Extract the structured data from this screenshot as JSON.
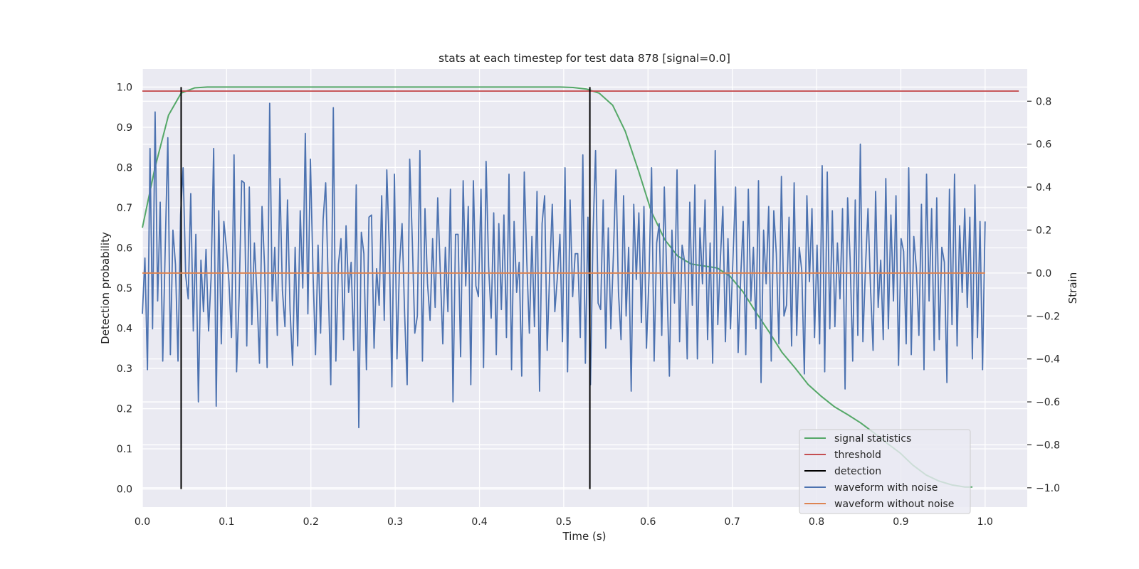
{
  "chart_data": {
    "type": "line",
    "title": "stats at each timestep for test data 878 [signal=0.0]",
    "xlabel": "Time (s)",
    "ylabel": "Detection probability",
    "y2label": "Strain",
    "xlim": [
      0.0,
      1.05
    ],
    "ylim": [
      -0.045,
      1.045
    ],
    "y2lim": [
      -1.09,
      0.95
    ],
    "x_ticks": [
      "0.0",
      "0.1",
      "0.2",
      "0.3",
      "0.4",
      "0.5",
      "0.6",
      "0.7",
      "0.8",
      "0.9",
      "1.0"
    ],
    "y_ticks": [
      "0.0",
      "0.1",
      "0.2",
      "0.3",
      "0.4",
      "0.5",
      "0.6",
      "0.7",
      "0.8",
      "0.9",
      "1.0"
    ],
    "y2_ticks": [
      "−1.0",
      "−0.8",
      "−0.6",
      "−0.4",
      "−0.2",
      "0.0",
      "0.2",
      "0.4",
      "0.6",
      "0.8"
    ],
    "grid": true,
    "legend_position": "lower right",
    "series": [
      {
        "name": "signal statistics",
        "axis": "left",
        "color": "#55a868",
        "x": [
          0.0,
          0.015,
          0.031,
          0.046,
          0.062,
          0.077,
          0.093,
          0.108,
          0.124,
          0.139,
          0.155,
          0.17,
          0.186,
          0.201,
          0.217,
          0.232,
          0.248,
          0.263,
          0.279,
          0.294,
          0.31,
          0.325,
          0.341,
          0.356,
          0.372,
          0.387,
          0.403,
          0.418,
          0.434,
          0.449,
          0.465,
          0.48,
          0.496,
          0.511,
          0.527,
          0.542,
          0.558,
          0.573,
          0.589,
          0.604,
          0.62,
          0.635,
          0.651,
          0.666,
          0.682,
          0.697,
          0.713,
          0.728,
          0.744,
          0.759,
          0.775,
          0.79,
          0.806,
          0.821,
          0.837,
          0.852,
          0.868,
          0.883,
          0.899,
          0.914,
          0.93,
          0.945,
          0.961,
          0.976,
          0.985
        ],
        "y": [
          0.65,
          0.8,
          0.93,
          0.985,
          0.998,
          1.0,
          1.0,
          1.0,
          1.0,
          1.0,
          1.0,
          1.0,
          1.0,
          1.0,
          1.0,
          1.0,
          1.0,
          1.0,
          1.0,
          1.0,
          1.0,
          1.0,
          1.0,
          1.0,
          1.0,
          1.0,
          1.0,
          1.0,
          1.0,
          1.0,
          1.0,
          1.0,
          1.0,
          0.999,
          0.995,
          0.985,
          0.955,
          0.89,
          0.79,
          0.69,
          0.62,
          0.58,
          0.56,
          0.555,
          0.55,
          0.53,
          0.49,
          0.44,
          0.39,
          0.34,
          0.3,
          0.26,
          0.23,
          0.205,
          0.185,
          0.165,
          0.14,
          0.115,
          0.09,
          0.06,
          0.035,
          0.02,
          0.01,
          0.005,
          0.005
        ]
      },
      {
        "name": "threshold",
        "axis": "left",
        "color": "#c44e52",
        "x": [
          0.0,
          1.04
        ],
        "y": [
          0.99,
          0.99
        ]
      },
      {
        "name": "detection",
        "axis": "left",
        "color": "#000000",
        "events": [
          {
            "x": 0.046,
            "y0": 0.0,
            "y1": 1.0
          },
          {
            "x": 0.531,
            "y0": 0.0,
            "y1": 1.0
          }
        ]
      },
      {
        "name": "waveform with noise",
        "axis": "right",
        "color": "#4c72b0",
        "x_range": [
          0.0,
          1.0
        ],
        "y": [
          -0.19,
          0.07,
          -0.45,
          0.58,
          -0.26,
          0.75,
          -0.13,
          0.33,
          -0.41,
          0.13,
          0.63,
          -0.38,
          0.2,
          0.04,
          -0.41,
          0.27,
          0.49,
          -0.01,
          -0.12,
          0.37,
          -0.27,
          0.18,
          -0.6,
          0.06,
          -0.18,
          0.11,
          -0.27,
          -0.02,
          0.58,
          -0.62,
          0.29,
          -0.33,
          0.24,
          0.12,
          -0.04,
          -0.3,
          0.55,
          -0.46,
          -0.11,
          0.43,
          0.42,
          -0.34,
          0.4,
          -0.24,
          0.14,
          -0.1,
          -0.42,
          0.31,
          0.03,
          -0.44,
          0.79,
          -0.13,
          0.12,
          -0.29,
          0.44,
          -0.08,
          -0.25,
          0.34,
          -0.17,
          -0.43,
          0.12,
          -0.34,
          0.29,
          -0.07,
          0.65,
          -0.19,
          0.53,
          0.01,
          -0.38,
          0.13,
          -0.28,
          0.25,
          0.42,
          -0.05,
          -0.52,
          0.77,
          -0.41,
          0.04,
          0.16,
          -0.31,
          0.22,
          -0.09,
          0.05,
          -0.36,
          0.41,
          -0.72,
          0.19,
          0.09,
          -0.45,
          0.26,
          0.27,
          -0.35,
          0.02,
          -0.15,
          0.36,
          -0.22,
          0.48,
          0.11,
          -0.53,
          0.46,
          -0.4,
          0.04,
          0.23,
          -0.19,
          -0.52,
          0.53,
          0.16,
          -0.28,
          -0.2,
          0.57,
          -0.41,
          0.3,
          -0.05,
          -0.22,
          0.16,
          -0.16,
          0.35,
          0.01,
          -0.33,
          0.12,
          -0.18,
          0.39,
          -0.6,
          0.18,
          0.18,
          -0.39,
          0.43,
          -0.06,
          0.31,
          -0.52,
          0.43,
          -0.06,
          -0.11,
          0.39,
          -0.44,
          0.52,
          0.03,
          -0.21,
          0.28,
          -0.38,
          0.23,
          -0.17,
          0.27,
          -0.3,
          0.46,
          -0.45,
          0.24,
          -0.09,
          0.05,
          -0.48,
          0.47,
          0.05,
          -0.28,
          0.17,
          -0.25,
          0.38,
          -0.55,
          0.23,
          0.36,
          -0.36,
          0.01,
          0.32,
          -0.18,
          -0.02,
          0.18,
          -0.32,
          0.49,
          -0.46,
          0.34,
          -0.11,
          0.09,
          0.09,
          -0.3,
          0.55,
          -0.42,
          0.26,
          -0.52,
          0.18,
          0.57,
          -0.14,
          -0.17,
          0.34,
          -0.35,
          0.21,
          -0.26,
          0.08,
          0.48,
          -0.09,
          -0.31,
          0.36,
          -0.2,
          0.12,
          -0.55,
          0.32,
          -0.03,
          0.28,
          -0.23,
          0.31,
          -0.35,
          -0.01,
          0.49,
          -0.41,
          0.14,
          0.23,
          -0.29,
          0.4,
          -0.03,
          -0.48,
          0.2,
          -0.14,
          0.48,
          -0.32,
          0.13,
          0.05,
          -0.4,
          0.33,
          -0.15,
          0.41,
          -0.4,
          0.21,
          -0.05,
          0.34,
          -0.31,
          0.14,
          -0.42,
          0.57,
          -0.24,
          0.06,
          0.31,
          -0.32,
          0.16,
          -0.26,
          0.08,
          0.4,
          -0.37,
          -0.02,
          0.24,
          -0.38,
          0.39,
          -0.13,
          0.12,
          -0.26,
          0.43,
          -0.51,
          0.2,
          -0.05,
          0.31,
          -0.41,
          0.29,
          0.09,
          -0.33,
          0.45,
          -0.2,
          -0.15,
          0.26,
          -0.34,
          0.42,
          -0.29,
          0.12,
          0.01,
          -0.47,
          0.36,
          -0.04,
          0.3,
          -0.3,
          0.13,
          -0.33,
          0.5,
          -0.46,
          0.47,
          -0.26,
          0.29,
          -0.25,
          0.14,
          -0.12,
          0.3,
          -0.54,
          0.35,
          0.06,
          -0.41,
          0.34,
          -0.29,
          0.6,
          -0.32,
          0.02,
          0.3,
          -0.07,
          -0.36,
          0.38,
          -0.16,
          0.06,
          -0.31,
          0.44,
          -0.26,
          0.27,
          -0.13,
          0.36,
          -0.43,
          0.16,
          0.1,
          -0.33,
          0.49,
          -0.38,
          0.17,
          0.02,
          -0.29,
          0.32,
          -0.45,
          0.46,
          -0.13,
          0.3,
          -0.36,
          0.35,
          -0.31,
          0.12,
          0.05,
          -0.51,
          0.39,
          -0.24,
          0.46,
          -0.34,
          0.22,
          -0.09,
          0.3,
          -0.16,
          0.26,
          -0.4,
          0.41,
          -0.3,
          0.24,
          -0.45,
          0.24
        ]
      },
      {
        "name": "waveform without noise",
        "axis": "right",
        "color": "#dd8452",
        "x": [
          0.0,
          1.0
        ],
        "y": [
          0.0,
          0.0
        ]
      }
    ]
  },
  "legend": [
    {
      "label": "signal statistics",
      "color": "#55a868"
    },
    {
      "label": "threshold",
      "color": "#c44e52"
    },
    {
      "label": "detection",
      "color": "#000000"
    },
    {
      "label": "waveform with noise",
      "color": "#4c72b0"
    },
    {
      "label": "waveform without noise",
      "color": "#dd8452"
    }
  ],
  "colors": {
    "plot_background": "#eaeaf2",
    "grid": "#ffffff",
    "text": "#262626"
  }
}
